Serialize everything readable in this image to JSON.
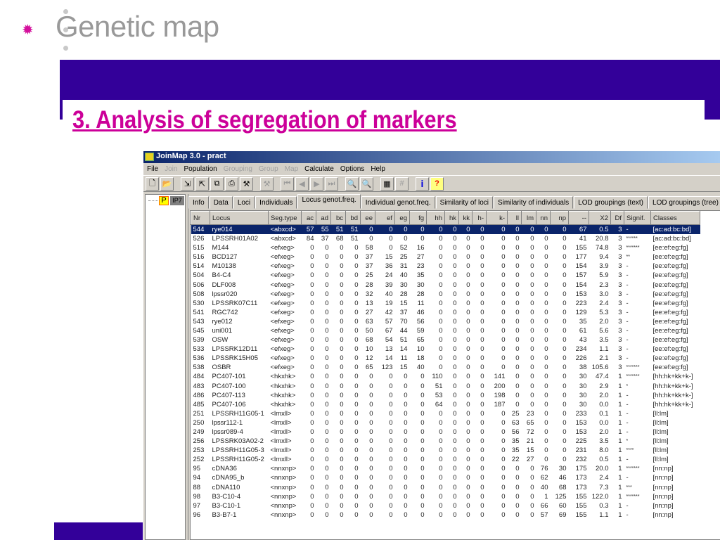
{
  "slide": {
    "title": "Genetic map",
    "subtitle": "3. Analysis of segregation of markers",
    "accent": "#cc0099",
    "band_color": "#330099",
    "bullet_icon": "flower-bullet-icon"
  },
  "window": {
    "title": "JoinMap 3.0  -  pract",
    "menu": [
      {
        "label": "File",
        "enabled": true
      },
      {
        "label": "Join",
        "enabled": false
      },
      {
        "label": "Population",
        "enabled": true
      },
      {
        "label": "Grouping",
        "enabled": false
      },
      {
        "label": "Group",
        "enabled": false
      },
      {
        "label": "Map",
        "enabled": false
      },
      {
        "label": "Calculate",
        "enabled": true
      },
      {
        "label": "Options",
        "enabled": true
      },
      {
        "label": "Help",
        "enabled": true
      }
    ],
    "toolbar": [
      {
        "icon": "new-icon",
        "glyph": "🗋"
      },
      {
        "icon": "open-icon",
        "glyph": "📂"
      },
      {
        "sep": true
      },
      {
        "icon": "import-icon",
        "glyph": "⇲"
      },
      {
        "icon": "export-icon",
        "glyph": "⇱"
      },
      {
        "icon": "copy-icon",
        "glyph": "⧉"
      },
      {
        "icon": "print-icon",
        "glyph": "⎙"
      },
      {
        "icon": "tools-icon",
        "glyph": "⚒"
      },
      {
        "sep": true
      },
      {
        "icon": "tools-disabled-icon",
        "glyph": "⚒",
        "disabled": true
      },
      {
        "sep": true
      },
      {
        "icon": "first-icon",
        "glyph": "⏮",
        "disabled": true
      },
      {
        "icon": "prev-icon",
        "glyph": "◀",
        "disabled": true
      },
      {
        "icon": "next-icon",
        "glyph": "▶",
        "disabled": true
      },
      {
        "icon": "last-icon",
        "glyph": "⏭",
        "disabled": true
      },
      {
        "sep": true
      },
      {
        "icon": "zoom-out-icon",
        "glyph": "🔍",
        "disabled": true
      },
      {
        "icon": "zoom-in-icon",
        "glyph": "🔍",
        "disabled": true
      },
      {
        "sep": true
      },
      {
        "icon": "calculator-icon",
        "glyph": "▦"
      },
      {
        "icon": "grid-icon",
        "glyph": "#",
        "disabled": true
      },
      {
        "sep": true
      },
      {
        "icon": "info-icon",
        "glyph": "i"
      },
      {
        "icon": "help-icon",
        "glyph": "?"
      }
    ],
    "tree": {
      "node_p": "P",
      "node_ip7": "IP7"
    },
    "tabs": [
      "Info",
      "Data",
      "Loci",
      "Individuals",
      "Locus genot.freq.",
      "Individual genot.freq.",
      "Similarity of loci",
      "Similarity of individuals",
      "LOD groupings (text)",
      "LOD groupings (tree)"
    ],
    "active_tab": 4,
    "columns": [
      "Nr",
      "Locus",
      "Seg.type",
      "ac",
      "ad",
      "bc",
      "bd",
      "ee",
      "ef",
      "eg",
      "fg",
      "hh",
      "hk",
      "kk",
      "h-",
      "k-",
      "ll",
      "lm",
      "nn",
      "np",
      "--",
      "X2",
      "Df",
      "Signif.",
      "Classes"
    ],
    "rows": [
      [
        "544",
        "rye014",
        "<abxcd>",
        "57",
        "55",
        "51",
        "51",
        "0",
        "0",
        "0",
        "0",
        "0",
        "0",
        "0",
        "0",
        "0",
        "0",
        "0",
        "0",
        "0",
        "67",
        "0.5",
        "3",
        "-",
        "[ac:ad:bc:bd]"
      ],
      [
        "526",
        "LPSSRH01A02",
        "<abxcd>",
        "84",
        "37",
        "68",
        "51",
        "0",
        "0",
        "0",
        "0",
        "0",
        "0",
        "0",
        "0",
        "0",
        "0",
        "0",
        "0",
        "0",
        "41",
        "20.8",
        "3",
        "******",
        "[ac:ad:bc:bd]"
      ],
      [
        "515",
        "M144",
        "<efxeg>",
        "0",
        "0",
        "0",
        "0",
        "58",
        "0",
        "52",
        "16",
        "0",
        "0",
        "0",
        "0",
        "0",
        "0",
        "0",
        "0",
        "0",
        "155",
        "74.8",
        "3",
        "*******",
        "[ee:ef:eg:fg]"
      ],
      [
        "516",
        "BCD127",
        "<efxeg>",
        "0",
        "0",
        "0",
        "0",
        "37",
        "15",
        "25",
        "27",
        "0",
        "0",
        "0",
        "0",
        "0",
        "0",
        "0",
        "0",
        "0",
        "177",
        "9.4",
        "3",
        "**",
        "[ee:ef:eg:fg]"
      ],
      [
        "514",
        "M10138",
        "<efxeg>",
        "0",
        "0",
        "0",
        "0",
        "37",
        "36",
        "31",
        "23",
        "0",
        "0",
        "0",
        "0",
        "0",
        "0",
        "0",
        "0",
        "0",
        "154",
        "3.9",
        "3",
        "-",
        "[ee:ef:eg:fg]"
      ],
      [
        "504",
        "B4-C4",
        "<efxeg>",
        "0",
        "0",
        "0",
        "0",
        "25",
        "24",
        "40",
        "35",
        "0",
        "0",
        "0",
        "0",
        "0",
        "0",
        "0",
        "0",
        "0",
        "157",
        "5.9",
        "3",
        "-",
        "[ee:ef:eg:fg]"
      ],
      [
        "506",
        "DLF008",
        "<efxeg>",
        "0",
        "0",
        "0",
        "0",
        "28",
        "39",
        "30",
        "30",
        "0",
        "0",
        "0",
        "0",
        "0",
        "0",
        "0",
        "0",
        "0",
        "154",
        "2.3",
        "3",
        "-",
        "[ee:ef:eg:fg]"
      ],
      [
        "508",
        "lpssr020",
        "<efxeg>",
        "0",
        "0",
        "0",
        "0",
        "32",
        "40",
        "28",
        "28",
        "0",
        "0",
        "0",
        "0",
        "0",
        "0",
        "0",
        "0",
        "0",
        "153",
        "3.0",
        "3",
        "-",
        "[ee:ef:eg:fg]"
      ],
      [
        "530",
        "LPSSRK07C11",
        "<efxeg>",
        "0",
        "0",
        "0",
        "0",
        "13",
        "19",
        "15",
        "11",
        "0",
        "0",
        "0",
        "0",
        "0",
        "0",
        "0",
        "0",
        "0",
        "223",
        "2.4",
        "3",
        "-",
        "[ee:ef:eg:fg]"
      ],
      [
        "541",
        "RGC742",
        "<efxeg>",
        "0",
        "0",
        "0",
        "0",
        "27",
        "42",
        "37",
        "46",
        "0",
        "0",
        "0",
        "0",
        "0",
        "0",
        "0",
        "0",
        "0",
        "129",
        "5.3",
        "3",
        "-",
        "[ee:ef:eg:fg]"
      ],
      [
        "543",
        "rye012",
        "<efxeg>",
        "0",
        "0",
        "0",
        "0",
        "63",
        "57",
        "70",
        "56",
        "0",
        "0",
        "0",
        "0",
        "0",
        "0",
        "0",
        "0",
        "0",
        "35",
        "2.0",
        "3",
        "-",
        "[ee:ef:eg:fg]"
      ],
      [
        "545",
        "uni001",
        "<efxeg>",
        "0",
        "0",
        "0",
        "0",
        "50",
        "67",
        "44",
        "59",
        "0",
        "0",
        "0",
        "0",
        "0",
        "0",
        "0",
        "0",
        "0",
        "61",
        "5.6",
        "3",
        "-",
        "[ee:ef:eg:fg]"
      ],
      [
        "539",
        "OSW",
        "<efxeg>",
        "0",
        "0",
        "0",
        "0",
        "68",
        "54",
        "51",
        "65",
        "0",
        "0",
        "0",
        "0",
        "0",
        "0",
        "0",
        "0",
        "0",
        "43",
        "3.5",
        "3",
        "-",
        "[ee:ef:eg:fg]"
      ],
      [
        "533",
        "LPSSRK12D11",
        "<efxeg>",
        "0",
        "0",
        "0",
        "0",
        "10",
        "13",
        "14",
        "10",
        "0",
        "0",
        "0",
        "0",
        "0",
        "0",
        "0",
        "0",
        "0",
        "234",
        "1.1",
        "3",
        "-",
        "[ee:ef:eg:fg]"
      ],
      [
        "536",
        "LPSSRK15H05",
        "<efxeg>",
        "0",
        "0",
        "0",
        "0",
        "12",
        "14",
        "11",
        "18",
        "0",
        "0",
        "0",
        "0",
        "0",
        "0",
        "0",
        "0",
        "0",
        "226",
        "2.1",
        "3",
        "-",
        "[ee:ef:eg:fg]"
      ],
      [
        "538",
        "OSBR",
        "<efxeg>",
        "0",
        "0",
        "0",
        "0",
        "65",
        "123",
        "15",
        "40",
        "0",
        "0",
        "0",
        "0",
        "0",
        "0",
        "0",
        "0",
        "0",
        "38",
        "105.6",
        "3",
        "*******",
        "[ee:ef:eg:fg]"
      ],
      [
        "484",
        "PC407-101",
        "<hkxhk>",
        "0",
        "0",
        "0",
        "0",
        "0",
        "0",
        "0",
        "0",
        "110",
        "0",
        "0",
        "0",
        "141",
        "0",
        "0",
        "0",
        "0",
        "30",
        "47.4",
        "1",
        "*******",
        "[hh:hk+kk+k-]"
      ],
      [
        "483",
        "PC407-100",
        "<hkxhk>",
        "0",
        "0",
        "0",
        "0",
        "0",
        "0",
        "0",
        "0",
        "51",
        "0",
        "0",
        "0",
        "200",
        "0",
        "0",
        "0",
        "0",
        "30",
        "2.9",
        "1",
        "*",
        "[hh:hk+kk+k-]"
      ],
      [
        "486",
        "PC407-113",
        "<hkxhk>",
        "0",
        "0",
        "0",
        "0",
        "0",
        "0",
        "0",
        "0",
        "53",
        "0",
        "0",
        "0",
        "198",
        "0",
        "0",
        "0",
        "0",
        "30",
        "2.0",
        "1",
        "-",
        "[hh:hk+kk+k-]"
      ],
      [
        "485",
        "PC407-106",
        "<hkxhk>",
        "0",
        "0",
        "0",
        "0",
        "0",
        "0",
        "0",
        "0",
        "64",
        "0",
        "0",
        "0",
        "187",
        "0",
        "0",
        "0",
        "0",
        "30",
        "0.0",
        "1",
        "-",
        "[hh:hk+kk+k-]"
      ],
      [
        "251",
        "LPSSRH11G05-1",
        "<lmxll>",
        "0",
        "0",
        "0",
        "0",
        "0",
        "0",
        "0",
        "0",
        "0",
        "0",
        "0",
        "0",
        "0",
        "25",
        "23",
        "0",
        "0",
        "233",
        "0.1",
        "1",
        "-",
        "[ll:lm]"
      ],
      [
        "250",
        "lpssr112-1",
        "<lmxll>",
        "0",
        "0",
        "0",
        "0",
        "0",
        "0",
        "0",
        "0",
        "0",
        "0",
        "0",
        "0",
        "0",
        "63",
        "65",
        "0",
        "0",
        "153",
        "0.0",
        "1",
        "-",
        "[ll:lm]"
      ],
      [
        "249",
        "lpssr089-4",
        "<lmxll>",
        "0",
        "0",
        "0",
        "0",
        "0",
        "0",
        "0",
        "0",
        "0",
        "0",
        "0",
        "0",
        "0",
        "56",
        "72",
        "0",
        "0",
        "153",
        "2.0",
        "1",
        "-",
        "[ll:lm]"
      ],
      [
        "256",
        "LPSSRK03A02-2",
        "<lmxll>",
        "0",
        "0",
        "0",
        "0",
        "0",
        "0",
        "0",
        "0",
        "0",
        "0",
        "0",
        "0",
        "0",
        "35",
        "21",
        "0",
        "0",
        "225",
        "3.5",
        "1",
        "*",
        "[ll:lm]"
      ],
      [
        "253",
        "LPSSRH11G05-3",
        "<lmxll>",
        "0",
        "0",
        "0",
        "0",
        "0",
        "0",
        "0",
        "0",
        "0",
        "0",
        "0",
        "0",
        "0",
        "35",
        "15",
        "0",
        "0",
        "231",
        "8.0",
        "1",
        "****",
        "[ll:lm]"
      ],
      [
        "252",
        "LPSSRH11G05-2",
        "<lmxll>",
        "0",
        "0",
        "0",
        "0",
        "0",
        "0",
        "0",
        "0",
        "0",
        "0",
        "0",
        "0",
        "0",
        "22",
        "27",
        "0",
        "0",
        "232",
        "0.5",
        "1",
        "-",
        "[ll:lm]"
      ],
      [
        "95",
        "cDNA36",
        "<nnxnp>",
        "0",
        "0",
        "0",
        "0",
        "0",
        "0",
        "0",
        "0",
        "0",
        "0",
        "0",
        "0",
        "0",
        "0",
        "0",
        "76",
        "30",
        "175",
        "20.0",
        "1",
        "*******",
        "[nn:np]"
      ],
      [
        "94",
        "cDNA95_b",
        "<nnxnp>",
        "0",
        "0",
        "0",
        "0",
        "0",
        "0",
        "0",
        "0",
        "0",
        "0",
        "0",
        "0",
        "0",
        "0",
        "0",
        "62",
        "46",
        "173",
        "2.4",
        "1",
        "-",
        "[nn:np]"
      ],
      [
        "88",
        "cDNA110",
        "<nnxnp>",
        "0",
        "0",
        "0",
        "0",
        "0",
        "0",
        "0",
        "0",
        "0",
        "0",
        "0",
        "0",
        "0",
        "0",
        "0",
        "40",
        "68",
        "173",
        "7.3",
        "1",
        "***",
        "[nn:np]"
      ],
      [
        "98",
        "B3-C10-4",
        "<nnxnp>",
        "0",
        "0",
        "0",
        "0",
        "0",
        "0",
        "0",
        "0",
        "0",
        "0",
        "0",
        "0",
        "0",
        "0",
        "0",
        "1",
        "125",
        "155",
        "122.0",
        "1",
        "*******",
        "[nn:np]"
      ],
      [
        "97",
        "B3-C10-1",
        "<nnxnp>",
        "0",
        "0",
        "0",
        "0",
        "0",
        "0",
        "0",
        "0",
        "0",
        "0",
        "0",
        "0",
        "0",
        "0",
        "0",
        "66",
        "60",
        "155",
        "0.3",
        "1",
        "-",
        "[nn:np]"
      ],
      [
        "96",
        "B3-B7-1",
        "<nnxnp>",
        "0",
        "0",
        "0",
        "0",
        "0",
        "0",
        "0",
        "0",
        "0",
        "0",
        "0",
        "0",
        "0",
        "0",
        "0",
        "57",
        "69",
        "155",
        "1.1",
        "1",
        "-",
        "[nn:np]"
      ]
    ],
    "selected_row": 0
  }
}
